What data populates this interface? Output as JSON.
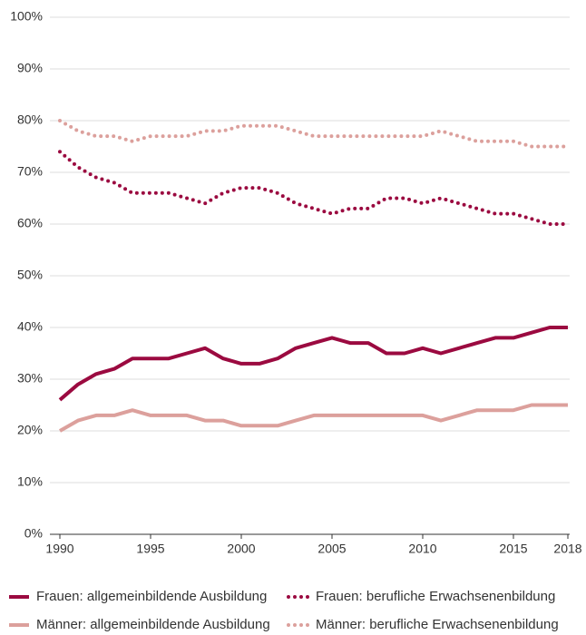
{
  "chart_data": {
    "type": "line",
    "x": [
      1990,
      1991,
      1992,
      1993,
      1994,
      1995,
      1996,
      1997,
      1998,
      1999,
      2000,
      2001,
      2002,
      2003,
      2004,
      2005,
      2006,
      2007,
      2008,
      2009,
      2010,
      2011,
      2012,
      2013,
      2014,
      2015,
      2016,
      2017,
      2018
    ],
    "series": [
      {
        "name": "Frauen: allgemeinbildende Ausbildung",
        "color": "#9b0a40",
        "style": "solid",
        "values": [
          26,
          29,
          31,
          32,
          34,
          34,
          34,
          35,
          36,
          34,
          33,
          33,
          34,
          36,
          37,
          38,
          37,
          37,
          35,
          35,
          36,
          35,
          36,
          37,
          38,
          38,
          39,
          40,
          40
        ]
      },
      {
        "name": "Frauen: berufliche Erwachsenenbildung",
        "color": "#9b0a40",
        "style": "dotted",
        "values": [
          74,
          71,
          69,
          68,
          66,
          66,
          66,
          65,
          64,
          66,
          67,
          67,
          66,
          64,
          63,
          62,
          63,
          63,
          65,
          65,
          64,
          65,
          64,
          63,
          62,
          62,
          61,
          60,
          60
        ]
      },
      {
        "name": "Männer: allgemeinbildende Ausbildung",
        "color": "#dca09c",
        "style": "solid",
        "values": [
          20,
          22,
          23,
          23,
          24,
          23,
          23,
          23,
          22,
          22,
          21,
          21,
          21,
          22,
          23,
          23,
          23,
          23,
          23,
          23,
          23,
          22,
          23,
          24,
          24,
          24,
          25,
          25,
          25
        ]
      },
      {
        "name": "Männer: berufliche Erwachsenenbildung",
        "color": "#dca09c",
        "style": "dotted",
        "values": [
          80,
          78,
          77,
          77,
          76,
          77,
          77,
          77,
          78,
          78,
          79,
          79,
          79,
          78,
          77,
          77,
          77,
          77,
          77,
          77,
          77,
          78,
          77,
          76,
          76,
          76,
          75,
          75,
          75
        ]
      }
    ],
    "xlim": [
      1990,
      2018
    ],
    "xticks": [
      1990,
      1995,
      2000,
      2005,
      2010,
      2015,
      2018
    ],
    "ylim": [
      0,
      100
    ],
    "yticks": [
      {
        "value": 0,
        "label": "0%"
      },
      {
        "value": 10,
        "label": "10%"
      },
      {
        "value": 20,
        "label": "20%"
      },
      {
        "value": 30,
        "label": "30%"
      },
      {
        "value": 40,
        "label": "40%"
      },
      {
        "value": 50,
        "label": "50%"
      },
      {
        "value": 60,
        "label": "60%"
      },
      {
        "value": 70,
        "label": "70%"
      },
      {
        "value": 80,
        "label": "80%"
      },
      {
        "value": 90,
        "label": "90%"
      },
      {
        "value": 100,
        "label": "100%"
      }
    ],
    "grid": true
  }
}
